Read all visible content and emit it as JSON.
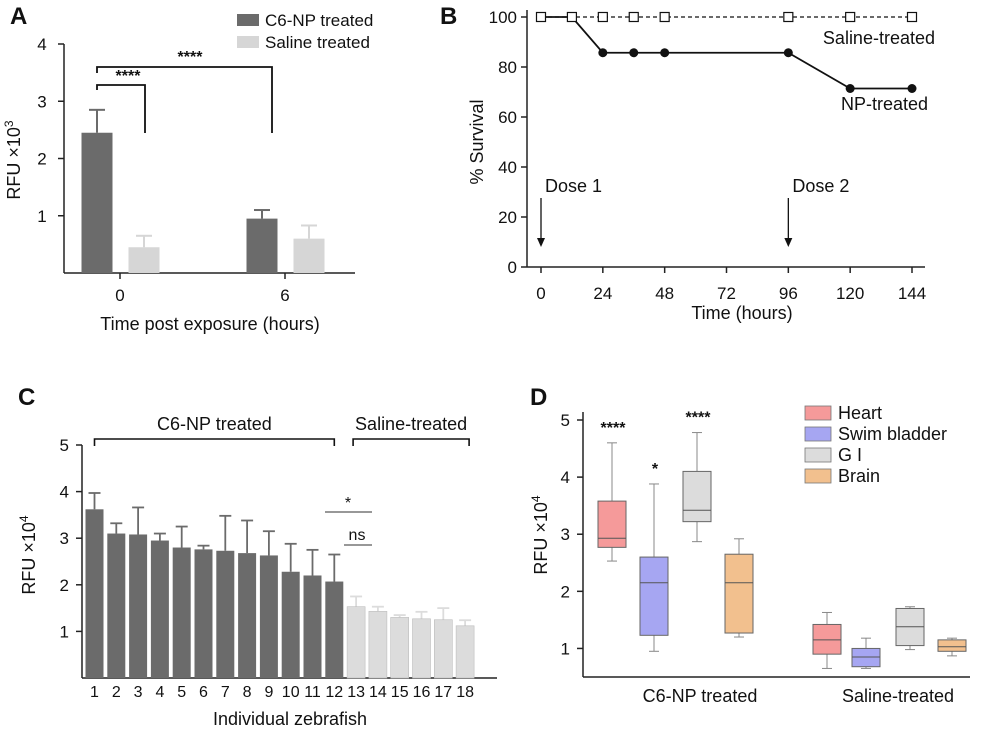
{
  "panels": {
    "a": "A",
    "b": "B",
    "c": "C",
    "d": "D"
  },
  "chart_data": [
    {
      "panel": "A",
      "type": "bar",
      "xlabel": "Time post exposure (hours)",
      "ylabel": "RFU ×10",
      "ylabel_sup": "3",
      "ylim": [
        0,
        4
      ],
      "yticks": [
        1,
        2,
        3,
        4
      ],
      "categories": [
        "0",
        "6"
      ],
      "series": [
        {
          "name": "C6-NP treated",
          "color": "#6b6b6b",
          "values": [
            2.45,
            0.95
          ],
          "errors": [
            0.4,
            0.15
          ]
        },
        {
          "name": "Saline treated",
          "color": "#d6d6d6",
          "values": [
            0.45,
            0.6
          ],
          "errors": [
            0.2,
            0.23
          ]
        }
      ],
      "legend": "top-right",
      "annotations": [
        {
          "label": "****"
        },
        {
          "label": "****"
        }
      ]
    },
    {
      "panel": "B",
      "type": "line",
      "xlabel": "Time (hours)",
      "ylabel": "% Survival",
      "xlim": [
        0,
        144
      ],
      "ylim": [
        0,
        100
      ],
      "xticks": [
        0,
        24,
        48,
        72,
        96,
        120,
        144
      ],
      "yticks": [
        0,
        20,
        40,
        60,
        80,
        100
      ],
      "series": [
        {
          "name": "Saline-treated",
          "style": "dashed-open-square",
          "x": [
            0,
            12,
            24,
            36,
            48,
            96,
            120,
            144
          ],
          "y": [
            100,
            100,
            100,
            100,
            100,
            100,
            100,
            100
          ]
        },
        {
          "name": "NP-treated",
          "style": "solid-filled-circle",
          "x": [
            0,
            12,
            24,
            36,
            48,
            96,
            120,
            144
          ],
          "y": [
            100,
            100,
            85.7,
            85.7,
            85.7,
            85.7,
            71.4,
            71.4
          ]
        }
      ],
      "annotations": [
        {
          "label": "Dose 1",
          "x": 0
        },
        {
          "label": "Dose 2",
          "x": 96
        }
      ]
    },
    {
      "panel": "C",
      "type": "bar",
      "xlabel": "Individual zebrafish",
      "ylabel": "RFU ×10",
      "ylabel_sup": "4",
      "ylim": [
        0,
        5
      ],
      "yticks": [
        1,
        2,
        3,
        4,
        5
      ],
      "categories": [
        "1",
        "2",
        "3",
        "4",
        "5",
        "6",
        "7",
        "8",
        "9",
        "10",
        "11",
        "12",
        "13",
        "14",
        "15",
        "16",
        "17",
        "18"
      ],
      "values": [
        3.62,
        3.1,
        3.08,
        2.95,
        2.8,
        2.76,
        2.73,
        2.68,
        2.63,
        2.28,
        2.2,
        2.07,
        1.53,
        1.43,
        1.3,
        1.27,
        1.25,
        1.12
      ],
      "errors": [
        0.35,
        0.22,
        0.58,
        0.15,
        0.45,
        0.08,
        0.75,
        0.7,
        0.52,
        0.6,
        0.55,
        0.58,
        0.22,
        0.1,
        0.05,
        0.15,
        0.25,
        0.12
      ],
      "colors": {
        "np": "#6b6b6b",
        "saline": "#dcdcdc"
      },
      "groups": [
        {
          "label": "C6-NP treated",
          "from": 1,
          "to": 12
        },
        {
          "label": "Saline-treated",
          "from": 13,
          "to": 18
        }
      ],
      "annotations": [
        {
          "label": "*"
        },
        {
          "label": "ns"
        }
      ]
    },
    {
      "panel": "D",
      "type": "box",
      "ylabel": "RFU ×10",
      "ylabel_sup": "4",
      "ylim": [
        0.5,
        5
      ],
      "yticks": [
        1,
        2,
        3,
        4,
        5
      ],
      "groups": [
        "C6-NP treated",
        "Saline-treated"
      ],
      "series": [
        {
          "name": "Heart",
          "color": "#f59a9a",
          "boxes": [
            {
              "min": 2.53,
              "q1": 2.77,
              "median": 2.93,
              "q3": 3.58,
              "max": 4.6,
              "sig": "****"
            },
            {
              "min": 0.65,
              "q1": 0.9,
              "median": 1.15,
              "q3": 1.42,
              "max": 1.63,
              "sig": ""
            }
          ]
        },
        {
          "name": "Swim bladder",
          "color": "#a6a6f2",
          "boxes": [
            {
              "min": 0.95,
              "q1": 1.23,
              "median": 2.15,
              "q3": 2.6,
              "max": 3.88,
              "sig": "*"
            },
            {
              "min": 0.65,
              "q1": 0.68,
              "median": 0.85,
              "q3": 1.0,
              "max": 1.18,
              "sig": ""
            }
          ]
        },
        {
          "name": "G I",
          "color": "#dcdcdc",
          "boxes": [
            {
              "min": 2.87,
              "q1": 3.22,
              "median": 3.42,
              "q3": 4.1,
              "max": 4.78,
              "sig": "****"
            },
            {
              "min": 0.98,
              "q1": 1.05,
              "median": 1.38,
              "q3": 1.7,
              "max": 1.73,
              "sig": ""
            }
          ]
        },
        {
          "name": "Brain",
          "color": "#f2c08e",
          "boxes": [
            {
              "min": 1.2,
              "q1": 1.27,
              "median": 2.15,
              "q3": 2.65,
              "max": 2.92,
              "sig": ""
            },
            {
              "min": 0.87,
              "q1": 0.95,
              "median": 1.03,
              "q3": 1.15,
              "max": 1.18,
              "sig": ""
            }
          ]
        }
      ],
      "legend": "top-right"
    }
  ]
}
